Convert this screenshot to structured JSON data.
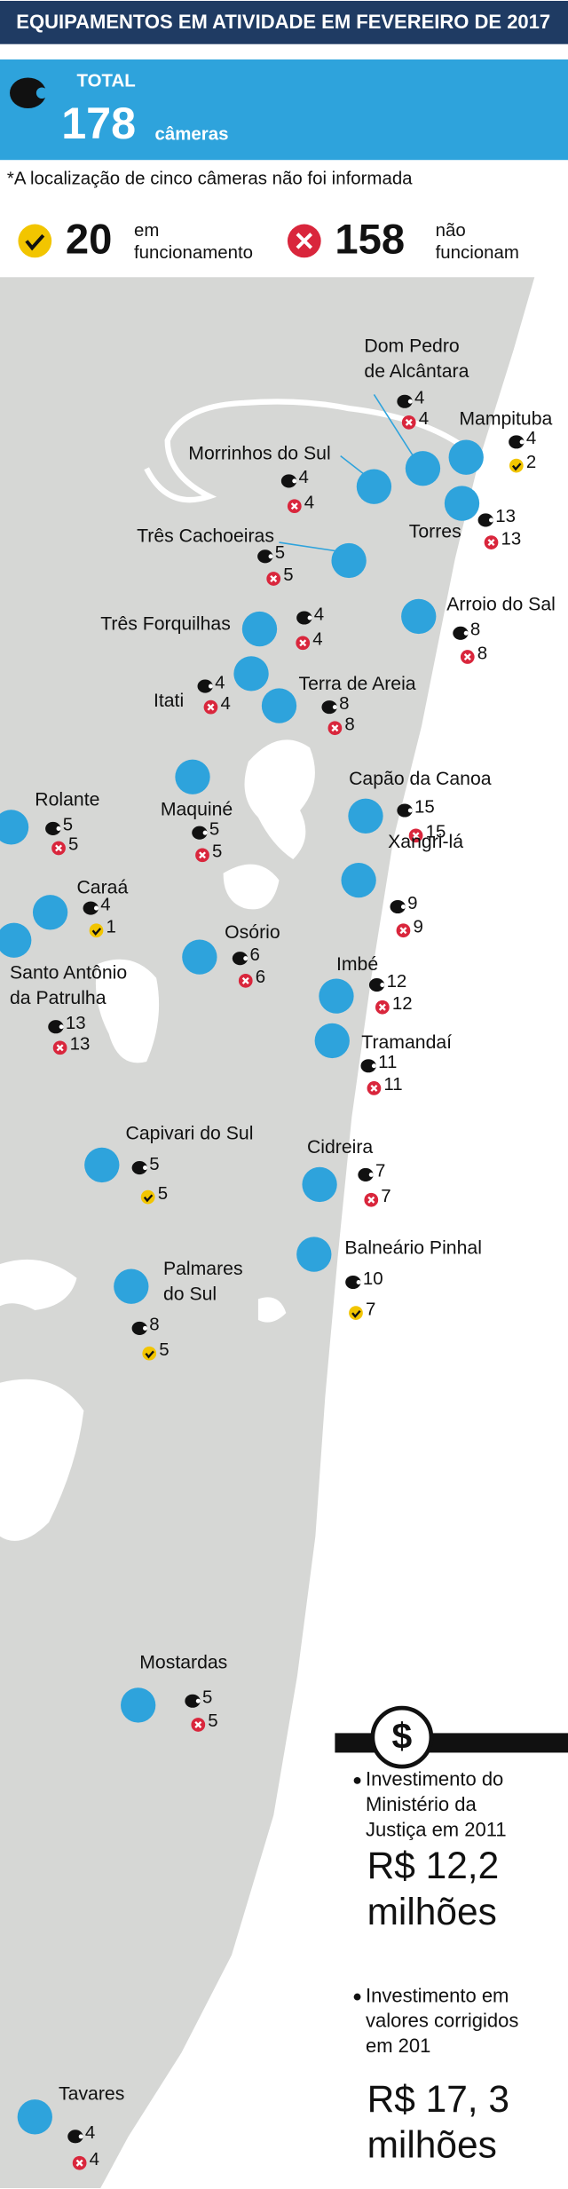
{
  "header": {
    "title": "EQUIPAMENTOS EM ATIVIDADE EM FEVEREIRO DE 2017"
  },
  "total": {
    "label": "TOTAL",
    "value": 178,
    "unit": "câmeras"
  },
  "note": "*A localização de cinco câmeras não foi informada",
  "legend": {
    "working": {
      "count": 20,
      "label": [
        "em",
        "funcionamento"
      ]
    },
    "not_working": {
      "count": 158,
      "label": [
        "não",
        "funcionam"
      ]
    }
  },
  "cities": [
    {
      "name": [
        "Dom Pedro",
        "de Alcântara"
      ],
      "cameras": 4,
      "not_working": 4
    },
    {
      "name": [
        "Mampituba"
      ],
      "cameras": 4,
      "working": 2
    },
    {
      "name": [
        "Morrinhos do Sul"
      ],
      "cameras": 4,
      "not_working": 4
    },
    {
      "name": [
        "Torres"
      ],
      "cameras": 13,
      "not_working": 13
    },
    {
      "name": [
        "Três Cachoeiras"
      ],
      "cameras": 5,
      "not_working": 5
    },
    {
      "name": [
        "Arroio do Sal"
      ],
      "cameras": 8,
      "not_working": 8
    },
    {
      "name": [
        "Três Forquilhas"
      ],
      "cameras": 4,
      "not_working": 4
    },
    {
      "name": [
        "Itati"
      ],
      "cameras": 4,
      "not_working": 4
    },
    {
      "name": [
        "Terra de Areia"
      ],
      "cameras": 8,
      "not_working": 8
    },
    {
      "name": [
        "Capão da Canoa"
      ],
      "cameras": 15,
      "not_working": 15
    },
    {
      "name": [
        "Maquiné"
      ],
      "cameras": 5,
      "not_working": 5
    },
    {
      "name": [
        "Rolante"
      ],
      "cameras": 5,
      "not_working": 5
    },
    {
      "name": [
        "Xangri-lá"
      ],
      "cameras": 9,
      "not_working": 9
    },
    {
      "name": [
        "Caraá"
      ],
      "cameras": 4,
      "working": 1
    },
    {
      "name": [
        "Osório"
      ],
      "cameras": 6,
      "not_working": 6
    },
    {
      "name": [
        "Santo Antônio",
        "da Patrulha"
      ],
      "cameras": 13,
      "not_working": 13
    },
    {
      "name": [
        "Imbé"
      ],
      "cameras": 12,
      "not_working": 12
    },
    {
      "name": [
        "Tramandaí"
      ],
      "cameras": 11,
      "not_working": 11
    },
    {
      "name": [
        "Capivari do Sul"
      ],
      "cameras": 5,
      "working": 5
    },
    {
      "name": [
        "Cidreira"
      ],
      "cameras": 7,
      "not_working": 7
    },
    {
      "name": [
        "Balneário Pinhal"
      ],
      "cameras": 10,
      "working": 7
    },
    {
      "name": [
        "Palmares",
        "do Sul"
      ],
      "cameras": 8,
      "working": 5
    },
    {
      "name": [
        "Mostardas"
      ],
      "cameras": 5,
      "not_working": 5
    },
    {
      "name": [
        "Tavares"
      ],
      "cameras": 4,
      "not_working": 4
    }
  ],
  "investments": {
    "icon": "$",
    "items": [
      {
        "label": [
          "Investimento do",
          "Ministério da",
          "Justiça em 2011"
        ],
        "amount": [
          "R$ 12,2",
          "milhões"
        ]
      },
      {
        "label": [
          "Investimento em",
          "valores corrigidos",
          "em 201"
        ],
        "amount": [
          "R$ 17, 3",
          "milhões"
        ]
      }
    ]
  }
}
